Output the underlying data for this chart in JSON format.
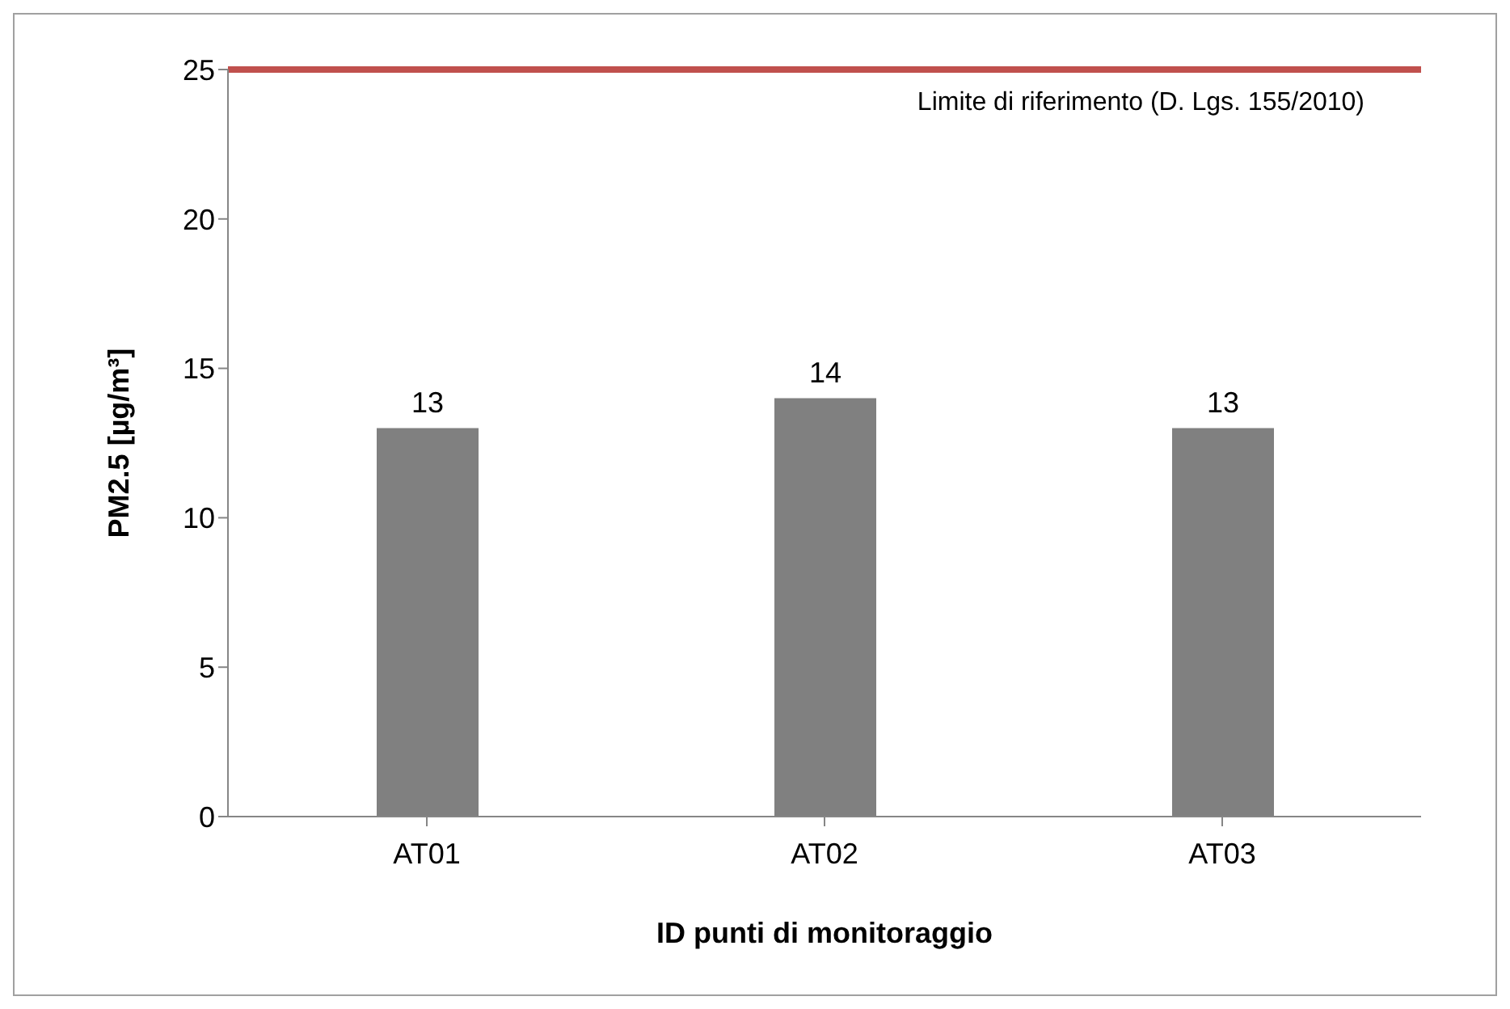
{
  "chart_data": {
    "type": "bar",
    "xlabel": "ID punti di monitoraggio",
    "ylabel": "PM2.5  [µg/m³]",
    "categories": [
      "AT01",
      "AT02",
      "AT03"
    ],
    "values": [
      13,
      14,
      13
    ],
    "color": "#808080",
    "ylim": [
      0,
      25
    ],
    "yticks": [
      0,
      5,
      10,
      15,
      20,
      25
    ],
    "grid": false,
    "data_labels": true,
    "ref_lines": [
      {
        "axis": "y",
        "value": 25,
        "label": "Limite di riferimento (D. Lgs. 155/2010)",
        "color": "#c0504d"
      }
    ]
  }
}
